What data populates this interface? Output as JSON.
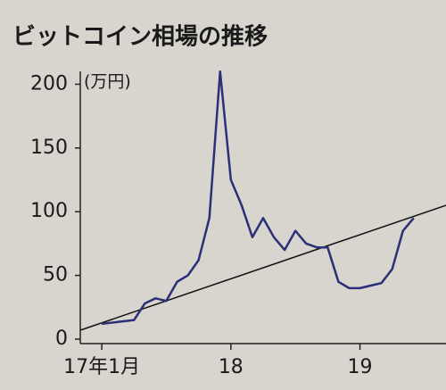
{
  "chart_data": {
    "type": "line",
    "title": "ビットコイン相場の推移",
    "y_unit": "(万円)",
    "x": [
      "2017-01",
      "2017-02",
      "2017-03",
      "2017-04",
      "2017-05",
      "2017-06",
      "2017-07",
      "2017-08",
      "2017-09",
      "2017-10",
      "2017-11",
      "2017-12",
      "2018-01",
      "2018-02",
      "2018-03",
      "2018-04",
      "2018-05",
      "2018-06",
      "2018-07",
      "2018-08",
      "2018-09",
      "2018-10",
      "2018-11",
      "2018-12",
      "2019-01",
      "2019-02",
      "2019-03",
      "2019-04",
      "2019-05",
      "2019-06"
    ],
    "series": [
      {
        "color": "#2b2f78",
        "values": [
          12,
          13,
          14,
          15,
          28,
          32,
          30,
          45,
          50,
          62,
          95,
          210,
          125,
          105,
          80,
          95,
          80,
          70,
          85,
          75,
          72,
          72,
          45,
          40,
          40,
          42,
          44,
          55,
          85,
          95
        ]
      }
    ],
    "trend_line": {
      "color": "#111111",
      "x": [
        "2016-11",
        "2019-09"
      ],
      "values": [
        7,
        105
      ]
    },
    "xlim": [
      "2016-11",
      "2019-09"
    ],
    "xticks": [
      {
        "value": "2017-01",
        "label": "17年1月"
      },
      {
        "value": "2018-01",
        "label": "18"
      },
      {
        "value": "2019-01",
        "label": "19"
      }
    ],
    "ylim": [
      0,
      215
    ],
    "yticks": [
      0,
      50,
      100,
      150,
      200
    ]
  }
}
